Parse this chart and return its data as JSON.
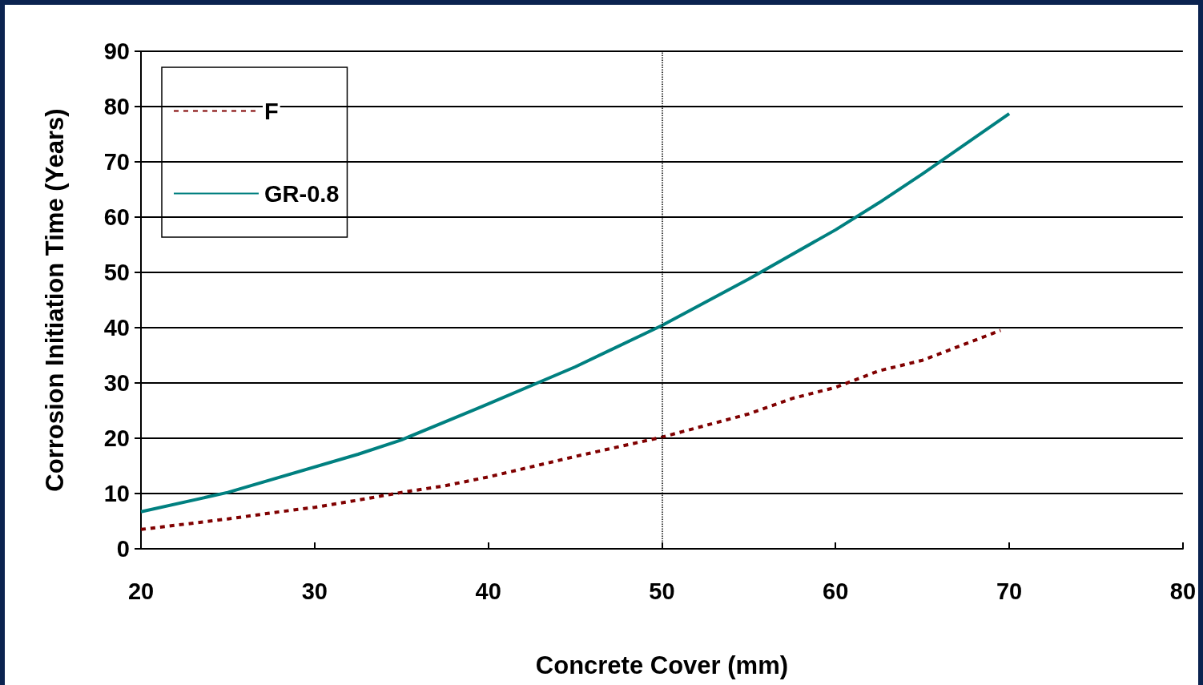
{
  "chart_data": {
    "type": "line",
    "xlabel": "Concrete Cover (mm)",
    "ylabel": "Corrosion Initiation Time (Years)",
    "xlim": [
      20,
      80
    ],
    "xticks": [
      20,
      30,
      40,
      50,
      60,
      70,
      80
    ],
    "ylim": [
      0,
      90
    ],
    "yticks": [
      0,
      10,
      20,
      30,
      40,
      50,
      60,
      70,
      80,
      90
    ],
    "grid": "y",
    "legend": "top left",
    "marker": "none",
    "ref_lines": [
      {
        "axis": "x",
        "value": 50,
        "color": "#000000",
        "line_style": "dotted"
      }
    ],
    "series": [
      {
        "name": "F",
        "color": "#800000",
        "line_style": "dashed",
        "x": [
          20,
          25,
          28,
          30,
          32.5,
          35,
          37.5,
          40,
          45,
          50,
          55,
          57.5,
          60,
          62.5,
          65,
          69.5
        ],
        "values": [
          3.5,
          5.4,
          6.7,
          7.5,
          8.8,
          10.2,
          11.4,
          13.0,
          16.7,
          20.2,
          24.4,
          27.2,
          29.2,
          32.2,
          34.1,
          39.5
        ]
      },
      {
        "name": "GR-0.8",
        "color": "#008080",
        "line_style": "solid",
        "x": [
          20,
          25,
          32.5,
          35,
          40,
          45,
          50,
          55,
          60,
          62.5,
          65,
          70
        ],
        "values": [
          6.7,
          10.2,
          17.1,
          19.7,
          26.2,
          32.9,
          40.4,
          48.8,
          57.7,
          62.6,
          67.8,
          78.7
        ]
      }
    ]
  }
}
